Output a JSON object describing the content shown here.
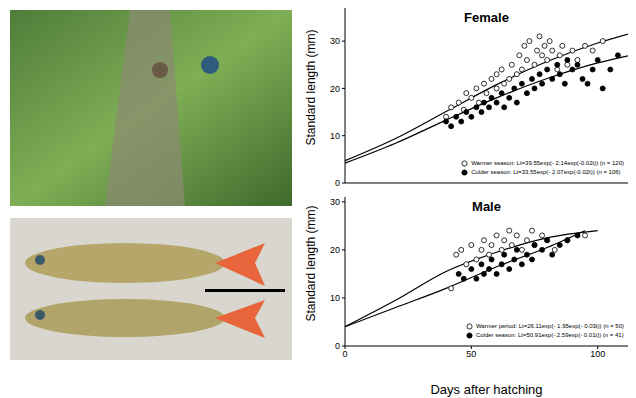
{
  "chart_data": [
    {
      "type": "scatter",
      "title": "Female",
      "ylabel": "Standard length (mm)",
      "xlim": [
        0,
        112
      ],
      "xticks": [
        0,
        50,
        100
      ],
      "ylim": [
        0,
        37
      ],
      "yticks": [
        0,
        10,
        20,
        30
      ],
      "grid": false,
      "legend": "lower right",
      "tick_labels": "y",
      "series": [
        {
          "name": "Warmer season: Lt=39.55exp(- 2.14exp(-0.02t)) (n = 120)",
          "color": "#000000",
          "marker": "open_circle",
          "line_style": "solid",
          "x": [
            40,
            42,
            45,
            47,
            48,
            50,
            52,
            53,
            55,
            56,
            58,
            60,
            60,
            62,
            63,
            65,
            66,
            68,
            69,
            70,
            71,
            72,
            73,
            75,
            76,
            77,
            78,
            79,
            80,
            81,
            82,
            84,
            85,
            86,
            88,
            90,
            92,
            95,
            98,
            102
          ],
          "values": [
            14,
            16,
            17,
            15.5,
            19,
            18,
            20,
            17,
            21,
            19,
            22,
            20,
            23,
            24,
            21,
            22,
            25,
            23,
            27,
            24,
            29,
            26,
            30,
            25,
            28,
            31,
            27,
            29,
            26,
            30,
            28,
            24,
            27,
            29,
            25,
            28,
            26,
            29,
            28,
            30
          ],
          "fit_x": [
            0,
            20,
            40,
            60,
            80,
            100,
            112
          ],
          "fit_values": [
            4.7,
            9.4,
            15.1,
            20.8,
            25.7,
            29.6,
            31.5
          ]
        },
        {
          "name": "Colder season: Lt=33.55exp(- 2.07exp(-0.02t)) (n = 106)",
          "color": "#000000",
          "marker": "filled_circle",
          "line_style": "solid",
          "x": [
            40,
            42,
            44,
            46,
            48,
            50,
            52,
            54,
            55,
            57,
            58,
            60,
            62,
            63,
            65,
            67,
            68,
            70,
            72,
            74,
            75,
            77,
            78,
            80,
            82,
            84,
            85,
            87,
            88,
            90,
            92,
            94,
            96,
            98,
            100,
            102,
            105,
            108
          ],
          "values": [
            13,
            12,
            14,
            13,
            15,
            14,
            16,
            15,
            17,
            16,
            18,
            17,
            19,
            16,
            18,
            20,
            17,
            21,
            19,
            22,
            20,
            23,
            21,
            24,
            22,
            25,
            23,
            21,
            26,
            24,
            25,
            22,
            21,
            24,
            26,
            20,
            24,
            27
          ],
          "fit_x": [
            0,
            20,
            40,
            60,
            80,
            100,
            112
          ],
          "fit_values": [
            4.2,
            8.4,
            13.3,
            18,
            22.1,
            25.4,
            26.9
          ]
        }
      ]
    },
    {
      "type": "scatter",
      "title": "Male",
      "ylabel": "Standard length (mm)",
      "xlabel": "Days after hatching",
      "xlim": [
        0,
        112
      ],
      "xticks": [
        0,
        50,
        100
      ],
      "ylim": [
        0,
        31
      ],
      "yticks": [
        0,
        10,
        20,
        30
      ],
      "grid": false,
      "legend": "lower right",
      "tick_labels": true,
      "series": [
        {
          "name": "Warmer period: Lt=26.11exp(- 1.95exp(- 0.03t)) (n = 50)",
          "color": "#000000",
          "marker": "open_circle",
          "line_style": "solid",
          "x": [
            42,
            44,
            46,
            48,
            50,
            52,
            54,
            55,
            57,
            58,
            60,
            62,
            63,
            65,
            66,
            68,
            70,
            72,
            74,
            75,
            78,
            80,
            83,
            88,
            95
          ],
          "values": [
            12,
            19,
            20,
            17,
            21,
            18,
            20,
            22,
            19,
            21,
            23,
            20,
            22,
            24,
            21,
            23,
            20,
            22,
            24,
            21,
            23,
            22,
            20,
            22,
            23
          ],
          "fit_x": [
            0,
            20,
            40,
            60,
            80,
            100
          ],
          "fit_values": [
            4,
            9.5,
            15.5,
            19.5,
            22.5,
            24
          ]
        },
        {
          "name": "Colder season: Lt=50.91exp(- 2.59exp(- 0.01t)) (n = 41)",
          "color": "#000000",
          "marker": "filled_circle",
          "line_style": "solid",
          "x": [
            45,
            47,
            50,
            52,
            54,
            55,
            57,
            58,
            60,
            62,
            63,
            65,
            67,
            68,
            70,
            72,
            74,
            75,
            78,
            80,
            82,
            85,
            88,
            92
          ],
          "values": [
            15,
            14,
            16,
            14,
            17,
            15,
            16,
            18,
            15,
            17,
            19,
            16,
            18,
            20,
            17,
            19,
            18,
            21,
            20,
            22,
            19,
            21,
            22,
            23
          ],
          "fit_x": [
            0,
            20,
            40,
            60,
            80,
            95
          ],
          "fit_values": [
            4,
            8,
            12,
            16.5,
            20.5,
            24
          ]
        }
      ]
    }
  ]
}
